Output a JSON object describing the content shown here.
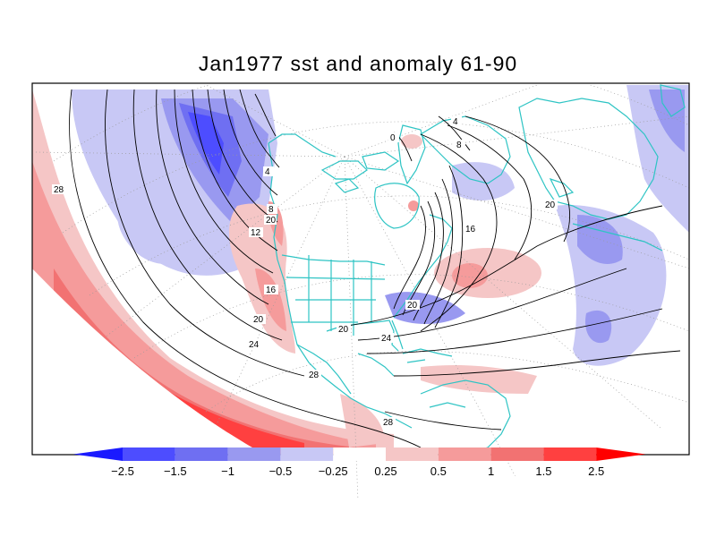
{
  "title": "Jan1977 sst and anomaly 61-90",
  "colors": {
    "land_outline": "#2ec4c4",
    "contour": "#000000",
    "grid": "#9a9a9a",
    "frame": "#000000"
  },
  "map": {
    "variable": "sst",
    "anomaly_base": "61-90",
    "month": "Jan1977",
    "projection": "polar conic (northern hemisphere)",
    "contour_labels": [
      "28",
      "20",
      "16",
      "12",
      "8",
      "4",
      "0",
      "4",
      "8",
      "16",
      "20",
      "20",
      "20",
      "20",
      "24",
      "24",
      "28",
      "28"
    ]
  },
  "colorbar": {
    "ticks": [
      "-2.5",
      "-1.5",
      "-1",
      "-0.5",
      "-0.25",
      "0.25",
      "0.5",
      "1",
      "1.5",
      "2.5"
    ],
    "colors": [
      "#1a1aff",
      "#4d4dff",
      "#6f6ff2",
      "#9999f0",
      "#c8c8f5",
      "#ffffff",
      "#f5c6c6",
      "#f59b9b",
      "#f27272",
      "#ff4040",
      "#ff0000"
    ]
  }
}
